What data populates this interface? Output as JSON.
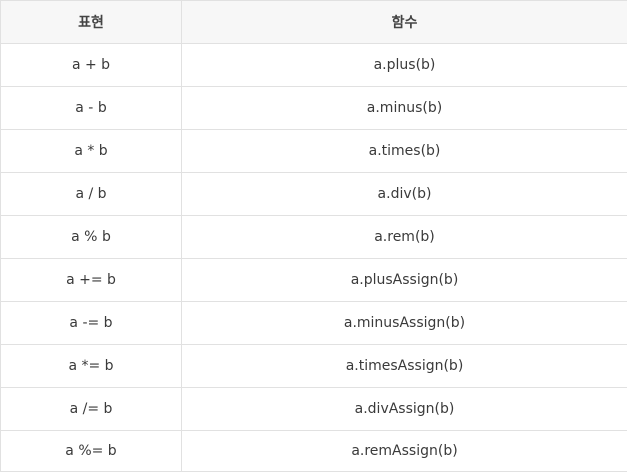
{
  "table": {
    "headers": [
      "표현",
      "함수"
    ],
    "rows": [
      [
        "a + b",
        "a.plus(b)"
      ],
      [
        "a - b",
        "a.minus(b)"
      ],
      [
        "a * b",
        "a.times(b)"
      ],
      [
        "a / b",
        "a.div(b)"
      ],
      [
        "a % b",
        "a.rem(b)"
      ],
      [
        "a += b",
        "a.plusAssign(b)"
      ],
      [
        "a -= b",
        "a.minusAssign(b)"
      ],
      [
        "a *= b",
        "a.timesAssign(b)"
      ],
      [
        "a /= b",
        "a.divAssign(b)"
      ],
      [
        "a %= b",
        "a.remAssign(b)"
      ]
    ]
  }
}
